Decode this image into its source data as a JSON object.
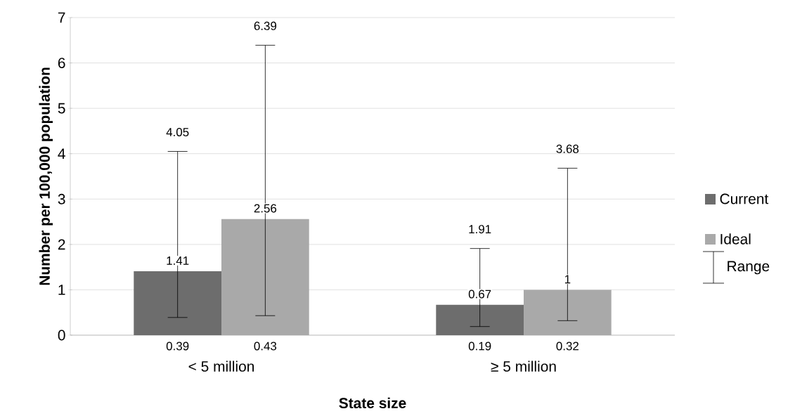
{
  "chart_data": {
    "type": "bar",
    "xlabel": "State size",
    "ylabel": "Number per 100,000 population",
    "categories": [
      "< 5 million",
      "≥ 5 million"
    ],
    "series": [
      {
        "name": "Current",
        "color": "#6d6d6d",
        "values": [
          1.41,
          0.67
        ],
        "value_labels": [
          "1.41",
          "0.67"
        ],
        "errors": [
          [
            0.39,
            4.05
          ],
          [
            0.19,
            1.91
          ]
        ]
      },
      {
        "name": "Ideal",
        "color": "#a9a9a9",
        "values": [
          2.56,
          1
        ],
        "value_labels": [
          "2.56",
          "1"
        ],
        "errors": [
          [
            0.43,
            6.39
          ],
          [
            0.32,
            3.68
          ]
        ]
      }
    ],
    "ylim": [
      0,
      7
    ],
    "yticks": [
      0,
      1,
      2,
      3,
      4,
      5,
      6,
      7
    ],
    "grid": "y",
    "legend": "right",
    "annotations": [
      "Range",
      "4.05",
      "0.39",
      "6.39",
      "0.43",
      "1.91",
      "0.19",
      "3.68",
      "0.32"
    ]
  }
}
